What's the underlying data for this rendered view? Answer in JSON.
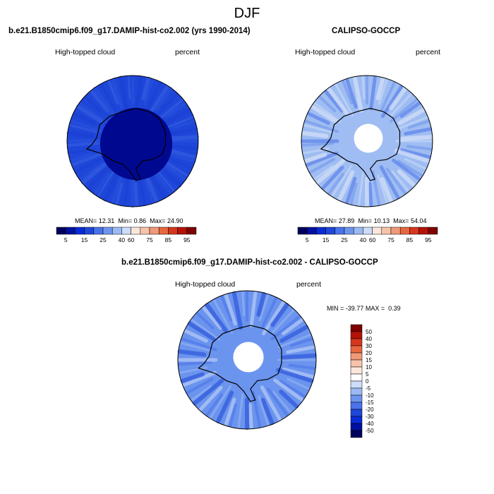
{
  "suptitle": "DJF",
  "panels": [
    {
      "title": "b.e21.B1850cmip6.f09_g17.DAMIP-hist-co2.002 (yrs 1990-2014)",
      "field": "High-topped cloud",
      "units": "percent",
      "stats": {
        "mean_label": "MEAN=",
        "mean": "12.31",
        "min_label": "Min=",
        "min": "0.86",
        "max_label": "Max=",
        "max": "24.90"
      },
      "colorbar_ticks": [
        "5",
        "15",
        "25",
        "40",
        "60",
        "75",
        "85",
        "95"
      ],
      "base_color": "#1e46d8",
      "center_color": "#00058c"
    },
    {
      "title": "CALIPSO-GOCCP",
      "field": "High-topped cloud",
      "units": "percent",
      "stats": {
        "mean_label": "MEAN=",
        "mean": "27.89",
        "min_label": "Min=",
        "min": "10.13",
        "max_label": "Max=",
        "max": "54.04"
      },
      "colorbar_ticks": [
        "5",
        "15",
        "25",
        "40",
        "60",
        "75",
        "85",
        "95"
      ],
      "base_color": "#9fbdf2"
    },
    {
      "title": "b.e21.B1850cmip6.f09_g17.DAMIP-hist-co2.002 - CALIPSO-GOCCP",
      "field": "High-topped cloud",
      "units": "percent",
      "stats": {
        "min_label": "MIN =",
        "min": "-39.77",
        "max_label": "MAX =",
        "max": "0.39"
      },
      "colorbar_ticks": [
        "50",
        "40",
        "30",
        "20",
        "15",
        "10",
        "5",
        "0",
        "-5",
        "-10",
        "-15",
        "-20",
        "-30",
        "-40",
        "-50"
      ],
      "base_color": "#6b94ee"
    }
  ],
  "colors": {
    "abs_scale": [
      "#00005c",
      "#0010a0",
      "#0a2ad6",
      "#1e46d8",
      "#4a72ea",
      "#6e94ee",
      "#9bbaf4",
      "#cddcf9",
      "#fbe6dc",
      "#f6c3ab",
      "#f09879",
      "#e8673f",
      "#d5371e",
      "#b51207",
      "#7e0000"
    ],
    "diff_scale": [
      "#7e0000",
      "#b51207",
      "#d5371e",
      "#e8673f",
      "#f09879",
      "#f6c3ab",
      "#fbe6dc",
      "#ffffff",
      "#cddcf9",
      "#9bbaf4",
      "#6e94ee",
      "#4a72ea",
      "#1e46d8",
      "#0a2ad6",
      "#0010a0",
      "#00005c"
    ]
  }
}
